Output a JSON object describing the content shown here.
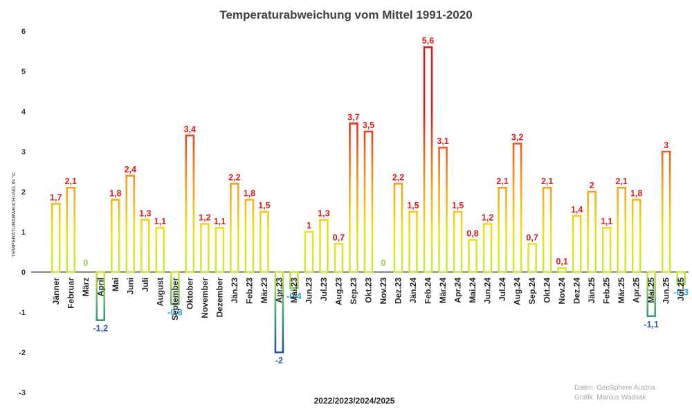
{
  "chart_data": {
    "type": "bar",
    "title": "Temperaturabweichung vom Mittel 1991-2020",
    "xlabel": "2022/2023/2024/2025",
    "ylabel": "TEMPERATURABWEICHUNG IN °C",
    "ylim": [
      -3,
      6
    ],
    "yticks": [
      -3,
      -2,
      -1,
      0,
      1,
      2,
      3,
      4,
      5,
      6
    ],
    "grid": false,
    "bar_style": "outline with value-dependent color gradient",
    "categories": [
      "Jänner",
      "Februar",
      "März",
      "April",
      "Mai",
      "Juni",
      "Juli",
      "August",
      "September",
      "Oktober",
      "November",
      "Dezember",
      "Jän.23",
      "Feb.23",
      "Mär.23",
      "Apr.23",
      "Mai.23",
      "Jun.23",
      "Jul.23",
      "Aug.23",
      "Sep.23",
      "Okt.23",
      "Nov.23",
      "Dez.23",
      "Jän.24",
      "Feb.24",
      "Mär.24",
      "Apr.24",
      "Mai.24",
      "Jun.24",
      "Jul.24",
      "Aug.24",
      "Sep.24",
      "Okt.24",
      "Nov.24",
      "Dez.24",
      "Jän.25",
      "Feb.25",
      "Mär.25",
      "Apr.25",
      "Mai.25",
      "Jun.25",
      "Jul.25"
    ],
    "values": [
      1.7,
      2.1,
      0,
      -1.2,
      1.8,
      2.4,
      1.3,
      1.1,
      -0.8,
      3.4,
      1.2,
      1.1,
      2.2,
      1.8,
      1.5,
      -2,
      -0.4,
      1,
      1.3,
      0.7,
      3.7,
      3.5,
      0,
      2.2,
      1.5,
      5.6,
      3.1,
      1.5,
      0.8,
      1.2,
      2.1,
      3.2,
      0.7,
      2.1,
      0.1,
      1.4,
      2,
      1.1,
      2.1,
      1.8,
      -1.1,
      3,
      -0.3
    ],
    "value_labels": [
      "1,7",
      "2,1",
      "0",
      "-1,2",
      "1,8",
      "2,4",
      "1,3",
      "1,1",
      "-0,8",
      "3,4",
      "1,2",
      "1,1",
      "2,2",
      "1,8",
      "1,5",
      "-2",
      "-0,4",
      "1",
      "1,3",
      "0,7",
      "3,7",
      "3,5",
      "0",
      "2,2",
      "1,5",
      "5,6",
      "3,1",
      "1,5",
      "0,8",
      "1,2",
      "2,1",
      "3,2",
      "0,7",
      "2,1",
      "0,1",
      "1,4",
      "2",
      "1,1",
      "2,1",
      "1,8",
      "-1,1",
      "3",
      "-0,3"
    ],
    "colors": {
      "hot": "#e31a1c",
      "warm": "#f59d1a",
      "mild": "#f1e30f",
      "neutral": "#c5ea3c",
      "zero_label": "#92d050",
      "cool": "#3fa27a",
      "cold": "#1f4e9b",
      "cold_label": "#2e5aa8",
      "cool_label": "#1fa0d8",
      "axis": "#404040"
    }
  },
  "credits": {
    "line1": "Daten: GeoSphere Austria",
    "line2": "Grafik: Marcus Wadsak"
  }
}
